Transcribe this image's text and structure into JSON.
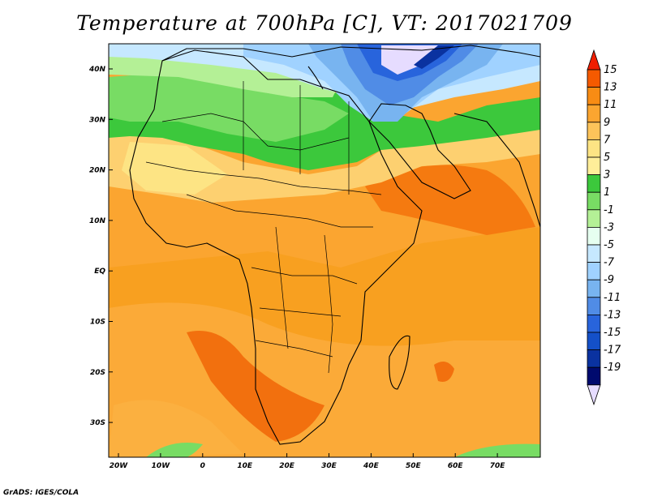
{
  "title": "Temperature at 700hPa [C], VT: 2017021709",
  "footer": "GrADS: IGES/COLA",
  "map": {
    "lat_labels": [
      "40N",
      "30N",
      "20N",
      "10N",
      "EQ",
      "10S",
      "20S",
      "30S"
    ],
    "lon_labels": [
      "20W",
      "10W",
      "0",
      "10E",
      "20E",
      "30E",
      "40E",
      "50E",
      "60E",
      "70E"
    ]
  },
  "colorbar": {
    "levels": [
      "15",
      "13",
      "11",
      "9",
      "7",
      "5",
      "3",
      "1",
      "-1",
      "-3",
      "-5",
      "-7",
      "-9",
      "-11",
      "-13",
      "-15",
      "-17",
      "-19"
    ],
    "colors": [
      "#f01e00",
      "#f55a00",
      "#f88c14",
      "#fba530",
      "#fdc45a",
      "#fde484",
      "#ffee99",
      "#3cc83c",
      "#78dc64",
      "#b4f096",
      "#e6fff0",
      "#c6e8ff",
      "#a0d2ff",
      "#78b4f0",
      "#508ce6",
      "#2864dc",
      "#1450c8",
      "#0a32a0",
      "#000a6e",
      "#e6dcff"
    ]
  }
}
